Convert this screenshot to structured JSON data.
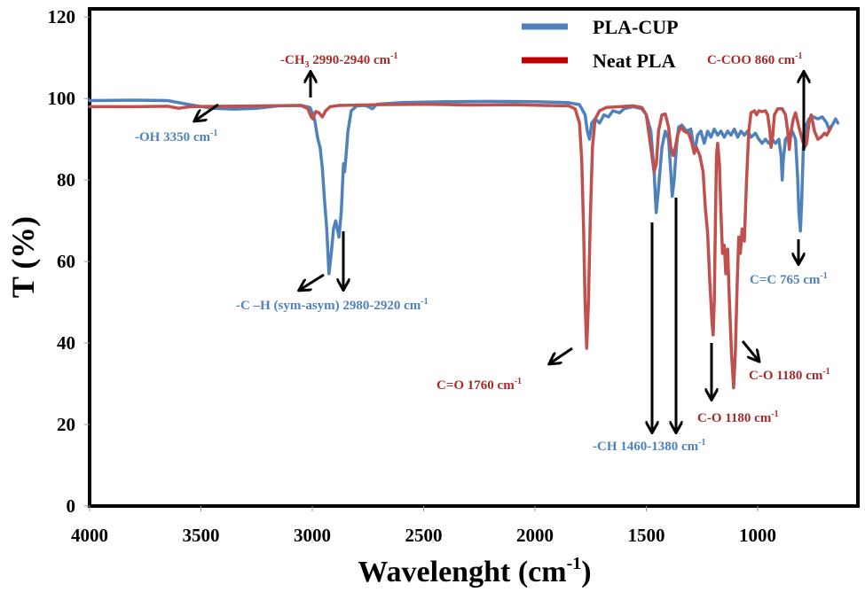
{
  "chart_data": {
    "type": "line",
    "title": "",
    "xlabel": "Wavelenght (cm",
    "xlabel_sup": "-1",
    "xlabel_close": ")",
    "ylabel": "T (%)",
    "xlim": [
      4000,
      550
    ],
    "ylim": [
      0,
      122
    ],
    "x_reversed": true,
    "grid": false,
    "legend_position": "top-right",
    "x_ticks": [
      4000,
      3500,
      3000,
      2500,
      2000,
      1500,
      1000
    ],
    "x_tick_labels": [
      "4000",
      "3500",
      "3000",
      "2500",
      "2000",
      "1500",
      "1000"
    ],
    "y_ticks": [
      0,
      20,
      40,
      60,
      80,
      100,
      120
    ],
    "y_tick_labels": [
      "0",
      "20",
      "40",
      "60",
      "80",
      "100",
      "120"
    ],
    "series": [
      {
        "name": "PLA-CUP",
        "color": "#4f81bd",
        "points": [
          [
            4000,
            99.5
          ],
          [
            3800,
            99.6
          ],
          [
            3650,
            99.5
          ],
          [
            3550,
            98.5
          ],
          [
            3450,
            97.6
          ],
          [
            3350,
            97.4
          ],
          [
            3250,
            97.6
          ],
          [
            3150,
            98.2
          ],
          [
            3050,
            98.3
          ],
          [
            3010,
            97.8
          ],
          [
            2990,
            95
          ],
          [
            2975,
            90
          ],
          [
            2965,
            88
          ],
          [
            2955,
            83
          ],
          [
            2945,
            75
          ],
          [
            2935,
            68
          ],
          [
            2925,
            57
          ],
          [
            2915,
            62
          ],
          [
            2905,
            68
          ],
          [
            2895,
            70
          ],
          [
            2880,
            66
          ],
          [
            2870,
            72
          ],
          [
            2860,
            84
          ],
          [
            2855,
            82
          ],
          [
            2850,
            85
          ],
          [
            2840,
            92
          ],
          [
            2825,
            97
          ],
          [
            2800,
            98.2
          ],
          [
            2760,
            98.3
          ],
          [
            2730,
            97.5
          ],
          [
            2710,
            98.6
          ],
          [
            2600,
            99.0
          ],
          [
            2400,
            99.2
          ],
          [
            2200,
            99.3
          ],
          [
            2000,
            99.2
          ],
          [
            1850,
            99.0
          ],
          [
            1800,
            98.5
          ],
          [
            1775,
            96
          ],
          [
            1765,
            92
          ],
          [
            1755,
            90
          ],
          [
            1745,
            94
          ],
          [
            1730,
            95
          ],
          [
            1710,
            94
          ],
          [
            1690,
            96
          ],
          [
            1670,
            95.5
          ],
          [
            1650,
            97
          ],
          [
            1620,
            96.5
          ],
          [
            1600,
            97.5
          ],
          [
            1560,
            98
          ],
          [
            1520,
            97.5
          ],
          [
            1500,
            96
          ],
          [
            1480,
            92
          ],
          [
            1465,
            82
          ],
          [
            1456,
            72
          ],
          [
            1445,
            78
          ],
          [
            1430,
            88
          ],
          [
            1415,
            92
          ],
          [
            1400,
            90
          ],
          [
            1390,
            82
          ],
          [
            1384,
            76
          ],
          [
            1375,
            80
          ],
          [
            1365,
            88
          ],
          [
            1355,
            93
          ],
          [
            1340,
            93.5
          ],
          [
            1320,
            92
          ],
          [
            1300,
            92.5
          ],
          [
            1290,
            89
          ],
          [
            1280,
            88
          ],
          [
            1270,
            91
          ],
          [
            1255,
            92
          ],
          [
            1240,
            89
          ],
          [
            1225,
            92
          ],
          [
            1210,
            90.5
          ],
          [
            1195,
            92.5
          ],
          [
            1180,
            91
          ],
          [
            1165,
            92
          ],
          [
            1150,
            90.5
          ],
          [
            1135,
            92
          ],
          [
            1120,
            91
          ],
          [
            1105,
            92.5
          ],
          [
            1090,
            90.5
          ],
          [
            1075,
            92
          ],
          [
            1060,
            91
          ],
          [
            1045,
            92
          ],
          [
            1030,
            90.5
          ],
          [
            1010,
            91.5
          ],
          [
            995,
            90
          ],
          [
            980,
            89
          ],
          [
            965,
            90
          ],
          [
            950,
            89
          ],
          [
            935,
            90
          ],
          [
            920,
            89
          ],
          [
            905,
            90
          ],
          [
            895,
            86
          ],
          [
            890,
            80
          ],
          [
            885,
            85
          ],
          [
            875,
            90
          ],
          [
            860,
            91
          ],
          [
            845,
            92
          ],
          [
            830,
            90
          ],
          [
            820,
            80
          ],
          [
            815,
            72
          ],
          [
            808,
            67.5
          ],
          [
            802,
            75
          ],
          [
            795,
            88
          ],
          [
            785,
            93
          ],
          [
            770,
            95
          ],
          [
            750,
            95.5
          ],
          [
            730,
            95
          ],
          [
            710,
            95.5
          ],
          [
            690,
            94
          ],
          [
            680,
            92.5
          ],
          [
            665,
            93.5
          ],
          [
            650,
            95
          ],
          [
            640,
            94
          ]
        ]
      },
      {
        "name": "Neat PLA",
        "color": "#c0504d",
        "points": [
          [
            4000,
            98
          ],
          [
            3800,
            98
          ],
          [
            3650,
            98.1
          ],
          [
            3600,
            97.6
          ],
          [
            3550,
            98
          ],
          [
            3400,
            98.1
          ],
          [
            3200,
            98.2
          ],
          [
            3050,
            98.3
          ],
          [
            3020,
            97.5
          ],
          [
            3005,
            95.5
          ],
          [
            2997,
            95
          ],
          [
            2985,
            96.8
          ],
          [
            2970,
            96.5
          ],
          [
            2955,
            95.5
          ],
          [
            2940,
            97
          ],
          [
            2920,
            98
          ],
          [
            2880,
            98.3
          ],
          [
            2700,
            98.5
          ],
          [
            2500,
            98.6
          ],
          [
            2300,
            98.4
          ],
          [
            2100,
            98.5
          ],
          [
            1950,
            98.3
          ],
          [
            1850,
            98.2
          ],
          [
            1820,
            97.5
          ],
          [
            1800,
            94
          ],
          [
            1790,
            85
          ],
          [
            1782,
            68
          ],
          [
            1775,
            50
          ],
          [
            1768,
            38.7
          ],
          [
            1760,
            50
          ],
          [
            1752,
            70
          ],
          [
            1742,
            88
          ],
          [
            1730,
            95
          ],
          [
            1710,
            97
          ],
          [
            1680,
            97.8
          ],
          [
            1620,
            98
          ],
          [
            1560,
            98.2
          ],
          [
            1520,
            97.8
          ],
          [
            1500,
            96
          ],
          [
            1480,
            88
          ],
          [
            1465,
            82
          ],
          [
            1455,
            84
          ],
          [
            1445,
            92
          ],
          [
            1430,
            96
          ],
          [
            1415,
            96.2
          ],
          [
            1400,
            93
          ],
          [
            1390,
            88
          ],
          [
            1380,
            86
          ],
          [
            1370,
            88
          ],
          [
            1360,
            91
          ],
          [
            1345,
            93
          ],
          [
            1330,
            92
          ],
          [
            1310,
            91.5
          ],
          [
            1295,
            89
          ],
          [
            1285,
            86.5
          ],
          [
            1275,
            88
          ],
          [
            1260,
            86
          ],
          [
            1245,
            82
          ],
          [
            1235,
            73
          ],
          [
            1225,
            67
          ],
          [
            1215,
            55
          ],
          [
            1205,
            45
          ],
          [
            1200,
            42
          ],
          [
            1195,
            50
          ],
          [
            1190,
            70
          ],
          [
            1185,
            86
          ],
          [
            1180,
            89
          ],
          [
            1172,
            84
          ],
          [
            1165,
            72
          ],
          [
            1158,
            62
          ],
          [
            1150,
            64
          ],
          [
            1143,
            57
          ],
          [
            1135,
            63
          ],
          [
            1128,
            52
          ],
          [
            1118,
            38
          ],
          [
            1108,
            29
          ],
          [
            1100,
            38
          ],
          [
            1092,
            55
          ],
          [
            1085,
            66
          ],
          [
            1078,
            62
          ],
          [
            1070,
            68
          ],
          [
            1060,
            65
          ],
          [
            1050,
            80
          ],
          [
            1040,
            92
          ],
          [
            1030,
            96.5
          ],
          [
            1015,
            97
          ],
          [
            1005,
            96
          ],
          [
            995,
            97
          ],
          [
            980,
            96.8
          ],
          [
            965,
            97
          ],
          [
            955,
            96
          ],
          [
            945,
            92
          ],
          [
            940,
            88
          ],
          [
            932,
            91
          ],
          [
            925,
            96
          ],
          [
            910,
            97.5
          ],
          [
            890,
            97.5
          ],
          [
            875,
            96
          ],
          [
            865,
            92
          ],
          [
            858,
            87.5
          ],
          [
            850,
            92
          ],
          [
            840,
            95
          ],
          [
            830,
            96.5
          ],
          [
            815,
            93
          ],
          [
            800,
            90
          ],
          [
            790,
            88
          ],
          [
            780,
            89
          ],
          [
            770,
            94
          ],
          [
            760,
            96
          ],
          [
            745,
            92
          ],
          [
            730,
            90
          ],
          [
            715,
            90.5
          ],
          [
            700,
            91.5
          ],
          [
            690,
            91
          ],
          [
            680,
            92
          ],
          [
            670,
            93
          ]
        ]
      }
    ],
    "annotations": [
      {
        "id": "oh",
        "text": "-OH 3350 cm",
        "sup": "-1",
        "color": "#4f81bd"
      },
      {
        "id": "ch3",
        "text_pre": "-CH",
        "sub": "3",
        "text": " 2990-2940 cm",
        "sup": "-1",
        "color": "#a52a2a"
      },
      {
        "id": "ch",
        "text": "-C –H (sym-asym) 2980-2920 cm",
        "sup": "-1",
        "color": "#4f81bd"
      },
      {
        "id": "co1760",
        "text": "C=O 1760 cm",
        "sup": "-1",
        "color": "#a52a2a"
      },
      {
        "id": "ch1460",
        "text": "-CH 1460-1380 cm",
        "sup": "-1",
        "color": "#4f81bd"
      },
      {
        "id": "co1180a",
        "text": "C-O 1180 cm",
        "sup": "-1",
        "color": "#a52a2a"
      },
      {
        "id": "co1180b",
        "text": "C-O 1180 cm",
        "sup": "-1",
        "color": "#a52a2a"
      },
      {
        "id": "ccoo",
        "text": "C-COO 860 cm",
        "sup": "-1",
        "color": "#a52a2a"
      },
      {
        "id": "cc765",
        "text": "C=C 765 cm",
        "sup": "-1",
        "color": "#4f81bd"
      }
    ]
  }
}
